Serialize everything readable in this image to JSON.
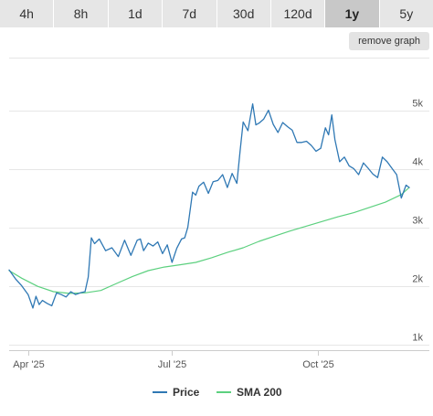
{
  "tabs": [
    {
      "label": "4h",
      "active": false
    },
    {
      "label": "8h",
      "active": false
    },
    {
      "label": "1d",
      "active": false
    },
    {
      "label": "7d",
      "active": false
    },
    {
      "label": "30d",
      "active": false
    },
    {
      "label": "120d",
      "active": false
    },
    {
      "label": "1y",
      "active": true
    },
    {
      "label": "5y",
      "active": false
    }
  ],
  "remove_graph_label": "remove graph",
  "chart_data": {
    "type": "line",
    "title": "",
    "xlabel": "",
    "ylabel": "",
    "x_ticks": [
      "Apr '25",
      "Jul '25",
      "Oct '25"
    ],
    "y_ticks": [
      "1k",
      "2k",
      "3k",
      "4k",
      "5k"
    ],
    "y_tick_values": [
      1000,
      2000,
      3000,
      4000,
      5000
    ],
    "x_range": [
      "2025-03-20",
      "2025-11-28"
    ],
    "ylim": [
      900,
      5900
    ],
    "grid": true,
    "legend_position": "bottom-center",
    "series": [
      {
        "name": "Price",
        "color": "#2f78b4",
        "x": [
          "2025-03-20",
          "2025-03-24",
          "2025-03-28",
          "2025-04-01",
          "2025-04-04",
          "2025-04-06",
          "2025-04-08",
          "2025-04-10",
          "2025-04-13",
          "2025-04-16",
          "2025-04-19",
          "2025-04-22",
          "2025-04-25",
          "2025-04-28",
          "2025-05-01",
          "2025-05-04",
          "2025-05-07",
          "2025-05-09",
          "2025-05-11",
          "2025-05-13",
          "2025-05-16",
          "2025-05-20",
          "2025-05-24",
          "2025-05-28",
          "2025-06-01",
          "2025-06-05",
          "2025-06-09",
          "2025-06-11",
          "2025-06-13",
          "2025-06-16",
          "2025-06-19",
          "2025-06-22",
          "2025-06-25",
          "2025-06-28",
          "2025-07-01",
          "2025-07-04",
          "2025-07-07",
          "2025-07-09",
          "2025-07-11",
          "2025-07-14",
          "2025-07-16",
          "2025-07-18",
          "2025-07-21",
          "2025-07-24",
          "2025-07-27",
          "2025-07-30",
          "2025-08-02",
          "2025-08-05",
          "2025-08-08",
          "2025-08-11",
          "2025-08-13",
          "2025-08-15",
          "2025-08-18",
          "2025-08-21",
          "2025-08-23",
          "2025-08-25",
          "2025-08-28",
          "2025-08-31",
          "2025-09-03",
          "2025-09-06",
          "2025-09-09",
          "2025-09-12",
          "2025-09-15",
          "2025-09-18",
          "2025-09-21",
          "2025-09-24",
          "2025-09-27",
          "2025-09-30",
          "2025-10-03",
          "2025-10-06",
          "2025-10-08",
          "2025-10-10",
          "2025-10-12",
          "2025-10-15",
          "2025-10-18",
          "2025-10-21",
          "2025-10-24",
          "2025-10-27",
          "2025-10-30",
          "2025-11-02",
          "2025-11-05",
          "2025-11-08",
          "2025-11-11",
          "2025-11-14",
          "2025-11-17",
          "2025-11-20",
          "2025-11-23",
          "2025-11-26",
          "2025-11-28"
        ],
        "values": [
          2270,
          2120,
          2000,
          1850,
          1620,
          1820,
          1680,
          1750,
          1700,
          1660,
          1880,
          1850,
          1810,
          1900,
          1850,
          1880,
          1900,
          2150,
          2820,
          2720,
          2800,
          2600,
          2650,
          2500,
          2780,
          2520,
          2780,
          2800,
          2600,
          2730,
          2680,
          2750,
          2550,
          2700,
          2400,
          2640,
          2800,
          2820,
          3000,
          3600,
          3550,
          3700,
          3770,
          3580,
          3780,
          3800,
          3900,
          3680,
          3920,
          3750,
          4300,
          4800,
          4650,
          5110,
          4750,
          4780,
          4850,
          5000,
          4760,
          4620,
          4790,
          4720,
          4660,
          4450,
          4450,
          4470,
          4400,
          4300,
          4350,
          4700,
          4580,
          4920,
          4500,
          4120,
          4200,
          4050,
          4000,
          3900,
          4100,
          4010,
          3910,
          3850,
          4200,
          4120,
          4010,
          3900,
          3500,
          3720,
          3680
        ]
      },
      {
        "name": "SMA 200",
        "color": "#5cd07f",
        "x": [
          "2025-03-20",
          "2025-03-28",
          "2025-04-07",
          "2025-04-17",
          "2025-04-27",
          "2025-05-07",
          "2025-05-17",
          "2025-05-27",
          "2025-06-06",
          "2025-06-16",
          "2025-06-26",
          "2025-07-06",
          "2025-07-16",
          "2025-07-26",
          "2025-08-05",
          "2025-08-15",
          "2025-08-25",
          "2025-09-04",
          "2025-09-14",
          "2025-09-24",
          "2025-10-04",
          "2025-10-14",
          "2025-10-24",
          "2025-11-03",
          "2025-11-13",
          "2025-11-23",
          "2025-11-28"
        ],
        "values": [
          2260,
          2130,
          1990,
          1900,
          1870,
          1880,
          1920,
          2040,
          2160,
          2260,
          2320,
          2360,
          2400,
          2480,
          2570,
          2650,
          2760,
          2850,
          2940,
          3020,
          3100,
          3180,
          3250,
          3340,
          3430,
          3560,
          3680
        ]
      }
    ]
  }
}
